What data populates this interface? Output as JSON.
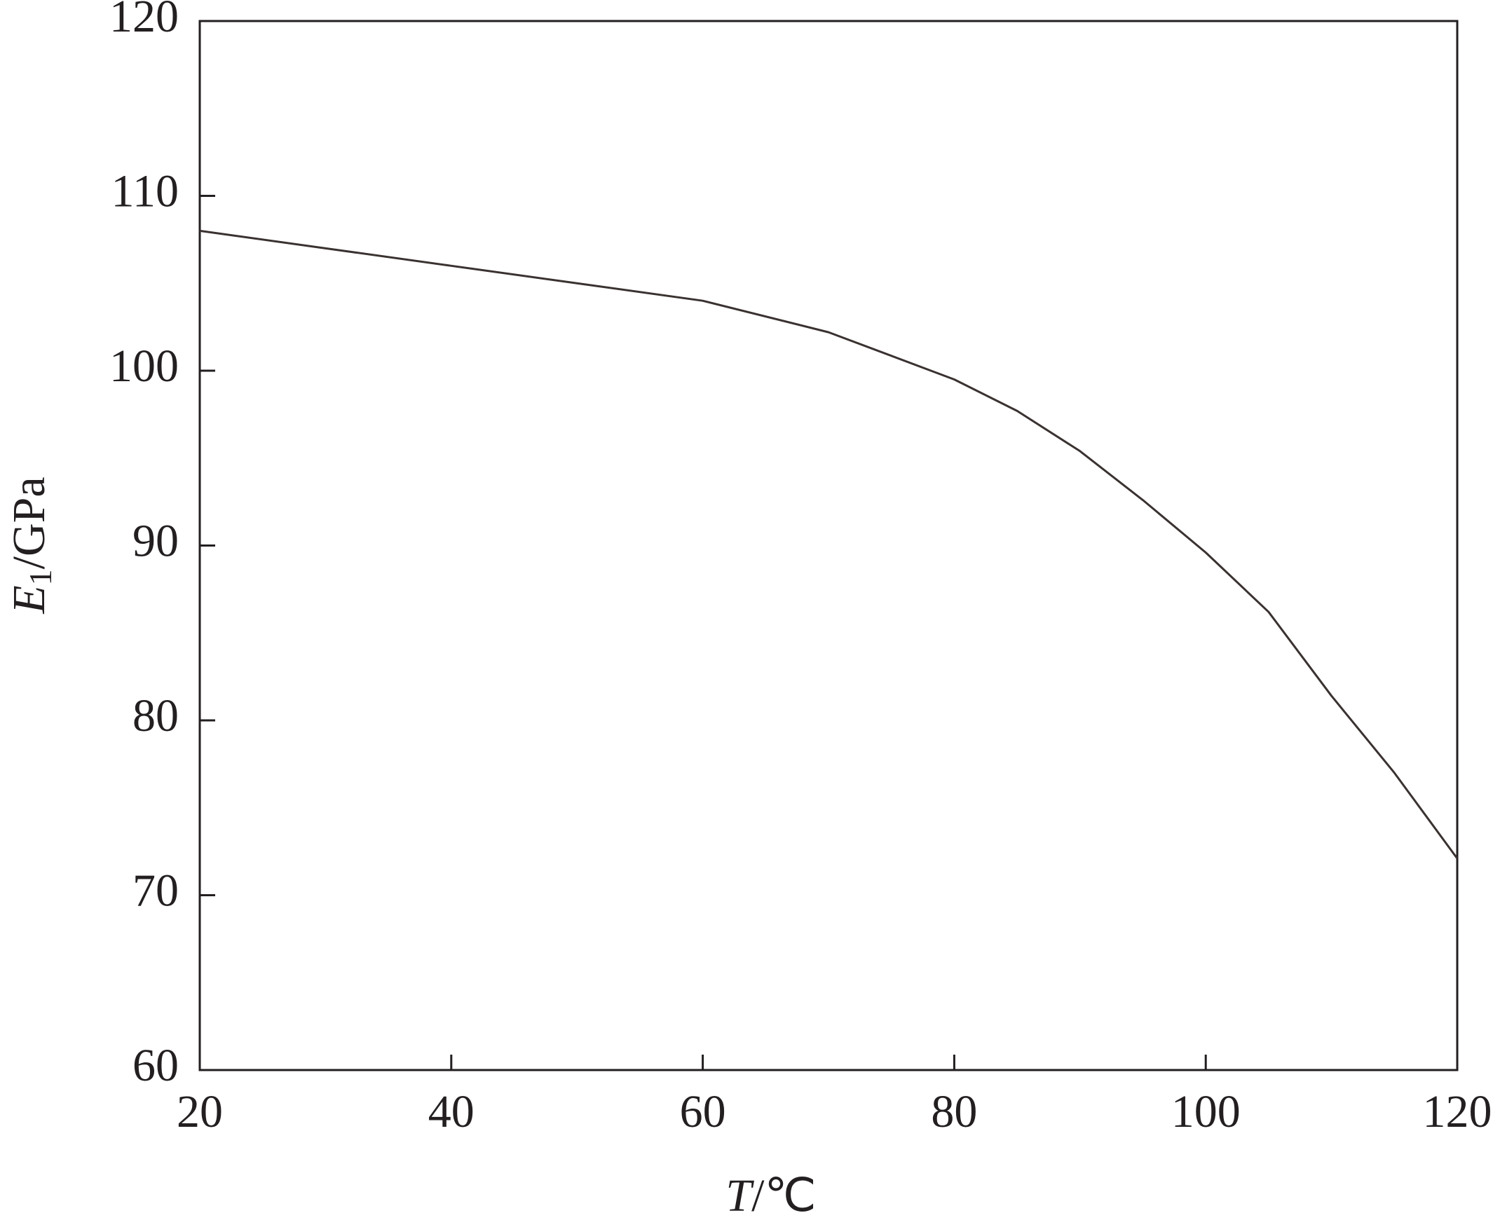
{
  "chart_data": {
    "type": "line",
    "x_label": {
      "symbol": "T",
      "unit": "/℃"
    },
    "y_label": {
      "symbol": "E",
      "subscript": "1",
      "unit": "/GPa"
    },
    "x": [
      20,
      30,
      40,
      50,
      60,
      70,
      80,
      85,
      90,
      95,
      100,
      105,
      110,
      115,
      120
    ],
    "series": [
      {
        "color": "#3a3231",
        "values": [
          108.0,
          107.0,
          106.0,
          105.0,
          104.0,
          102.2,
          99.5,
          97.7,
          95.4,
          92.6,
          89.6,
          86.2,
          81.4,
          77.0,
          72.1
        ]
      }
    ],
    "xlim": [
      20,
      120
    ],
    "xticks": [
      20,
      40,
      60,
      80,
      100,
      120
    ],
    "ylim": [
      60,
      120
    ],
    "yticks": [
      60,
      70,
      80,
      90,
      100,
      110,
      120
    ],
    "grid": false
  }
}
